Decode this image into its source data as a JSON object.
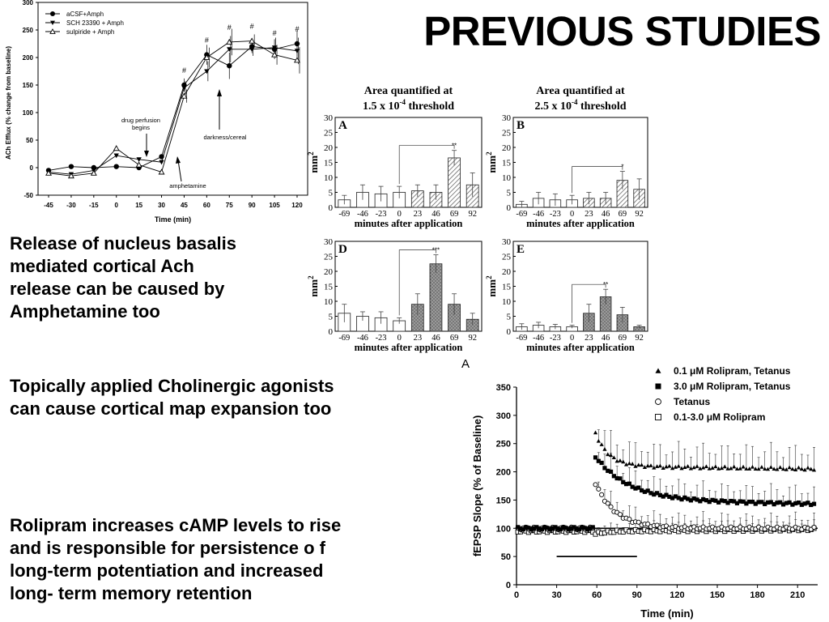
{
  "slide": {
    "title": "PREVIOUS STUDIES",
    "paragraphs": [
      [
        "Release of nucleus basalis",
        "mediated cortical Ach",
        "release  can be caused by",
        "Amphetamine too"
      ],
      [
        "Topically applied Cholinergic agonists",
        "can cause cortical map expansion too"
      ],
      [
        "Rolipram increases cAMP levels to rise",
        "and is responsible for persistence o f",
        "long-term potentiation and increased",
        "long- term memory retention"
      ]
    ]
  },
  "chart_data": [
    {
      "type": "line",
      "xlabel": "Time (min)",
      "ylabel": "ACh Efflux (% change from baseline)",
      "x": [
        -45,
        -30,
        -15,
        0,
        15,
        30,
        45,
        60,
        75,
        90,
        105,
        120
      ],
      "xlim": [
        -52,
        127
      ],
      "ylim": [
        -50,
        300
      ],
      "yticks": [
        -50,
        0,
        50,
        100,
        150,
        200,
        250,
        300
      ],
      "legend_position": "top-left",
      "series": [
        {
          "name": "aCSF+Amph",
          "marker": "filled-circle",
          "values": [
            -5,
            2,
            0,
            2,
            0,
            20,
            150,
            205,
            185,
            220,
            215,
            225
          ]
        },
        {
          "name": "SCH 23390 + Amph",
          "marker": "filled-triangle-down",
          "values": [
            -8,
            -12,
            -5,
            22,
            15,
            10,
            145,
            175,
            215,
            215,
            218,
            212
          ]
        },
        {
          "name": "sulpiride + Amph",
          "marker": "open-triangle-up",
          "values": [
            -10,
            -15,
            -10,
            35,
            5,
            -8,
            130,
            200,
            228,
            230,
            205,
            195
          ]
        }
      ],
      "significance": [
        {
          "x": 45,
          "label": "#"
        },
        {
          "x": 60,
          "label": "#"
        },
        {
          "x": 75,
          "label": "#"
        },
        {
          "x": 90,
          "label": "#"
        },
        {
          "x": 105,
          "label": "#"
        },
        {
          "x": 120,
          "label": "#"
        }
      ],
      "annotations": [
        "drug perfusion begins",
        "amphetamine",
        "darkness/cereal"
      ]
    },
    {
      "type": "bar",
      "panel": "A",
      "header": [
        "Area quantified at",
        "1.5 x 10",
        "-4",
        " threshold"
      ],
      "ylabel": "mm",
      "ylabel_sup": "2",
      "xlabel": "minutes after application",
      "categories": [
        "-69",
        "-46",
        "-23",
        "0",
        "23",
        "46",
        "69",
        "92"
      ],
      "values": [
        2.5,
        5,
        4.5,
        5,
        5.5,
        5,
        16.5,
        7.5
      ],
      "errors": [
        1.5,
        2.5,
        2.5,
        2,
        2,
        2.5,
        2.5,
        4
      ],
      "ylim": [
        0,
        30
      ],
      "yticks": [
        0,
        5,
        10,
        15,
        20,
        25,
        30
      ],
      "baseline_bars": 4,
      "style": "hatched",
      "sig": {
        "index": 6,
        "label": "**"
      }
    },
    {
      "type": "bar",
      "panel": "B",
      "header": [
        "Area quantified at",
        "2.5 x 10",
        "-4",
        " threshold"
      ],
      "ylabel": "mm",
      "ylabel_sup": "2",
      "xlabel": "minutes after application",
      "categories": [
        "-69",
        "-46",
        "-23",
        "0",
        "23",
        "46",
        "69",
        "92"
      ],
      "values": [
        1,
        3,
        2.5,
        2.5,
        3,
        3,
        9,
        6
      ],
      "errors": [
        1,
        2,
        2,
        1.5,
        2,
        2,
        3,
        3.5
      ],
      "ylim": [
        0,
        30
      ],
      "yticks": [
        0,
        5,
        10,
        15,
        20,
        25,
        30
      ],
      "baseline_bars": 4,
      "style": "hatched",
      "sig": {
        "index": 6,
        "label": "*"
      }
    },
    {
      "type": "bar",
      "panel": "D",
      "ylabel": "mm",
      "ylabel_sup": "2",
      "xlabel": "minutes after application",
      "categories": [
        "-69",
        "-46",
        "-23",
        "0",
        "23",
        "46",
        "69",
        "92"
      ],
      "values": [
        6,
        5,
        4.5,
        3.5,
        9,
        22.5,
        9,
        4
      ],
      "errors": [
        3,
        1.5,
        2,
        1,
        3.5,
        3,
        3.5,
        2
      ],
      "ylim": [
        0,
        30
      ],
      "yticks": [
        0,
        5,
        10,
        15,
        20,
        25,
        30
      ],
      "baseline_bars": 4,
      "style": "dotted",
      "sig": {
        "index": 5,
        "label": "***"
      }
    },
    {
      "type": "bar",
      "panel": "E",
      "ylabel": "mm",
      "ylabel_sup": "2",
      "xlabel": "minutes after application",
      "categories": [
        "-69",
        "-46",
        "-23",
        "0",
        "23",
        "46",
        "69",
        "92"
      ],
      "values": [
        1.5,
        2,
        1.5,
        1.5,
        6,
        11.5,
        5.5,
        1.5
      ],
      "errors": [
        1,
        1,
        0.8,
        0.5,
        3,
        2.5,
        2.5,
        0.5
      ],
      "ylim": [
        0,
        30
      ],
      "yticks": [
        0,
        5,
        10,
        15,
        20,
        25,
        30
      ],
      "baseline_bars": 4,
      "style": "dotted",
      "sig": {
        "index": 5,
        "label": "**"
      }
    },
    {
      "type": "scatter",
      "panel_label": "A",
      "xlabel": "Time (min)",
      "ylabel": "fEPSP Slope (% of Baseline)",
      "xlim": [
        0,
        225
      ],
      "ylim": [
        0,
        350
      ],
      "xticks": [
        0,
        30,
        60,
        90,
        120,
        150,
        180,
        210
      ],
      "yticks": [
        0,
        50,
        100,
        150,
        200,
        250,
        300,
        350
      ],
      "legend_position": "top-right",
      "bar_segment": {
        "from": 30,
        "to": 90,
        "y": 50
      },
      "series": [
        {
          "name_parts": [
            "0.1 ",
            "μ",
            "M Rolipram, Tetanus"
          ],
          "marker": "filled-triangle",
          "pre": 100,
          "peak": 275,
          "plateau": 210,
          "tau": 10,
          "end": 205,
          "err": 40
        },
        {
          "name_parts": [
            "3.0 ",
            "μ",
            "M Rolipram, Tetanus"
          ],
          "marker": "filled-square",
          "pre": 100,
          "peak": 230,
          "plateau": 150,
          "tau": 25,
          "end": 143,
          "err": 30
        },
        {
          "name_parts": [
            "Tetanus"
          ],
          "marker": "open-circle",
          "pre": 100,
          "peak": 185,
          "plateau": 100,
          "tau": 15,
          "end": 100,
          "err": 25
        },
        {
          "name_parts": [
            "0.1-3.0 ",
            "μ",
            "M Rolipram"
          ],
          "marker": "open-square",
          "pre": 95,
          "peak": 90,
          "plateau": 95,
          "tau": 10,
          "end": 98,
          "err": 15
        }
      ]
    }
  ]
}
